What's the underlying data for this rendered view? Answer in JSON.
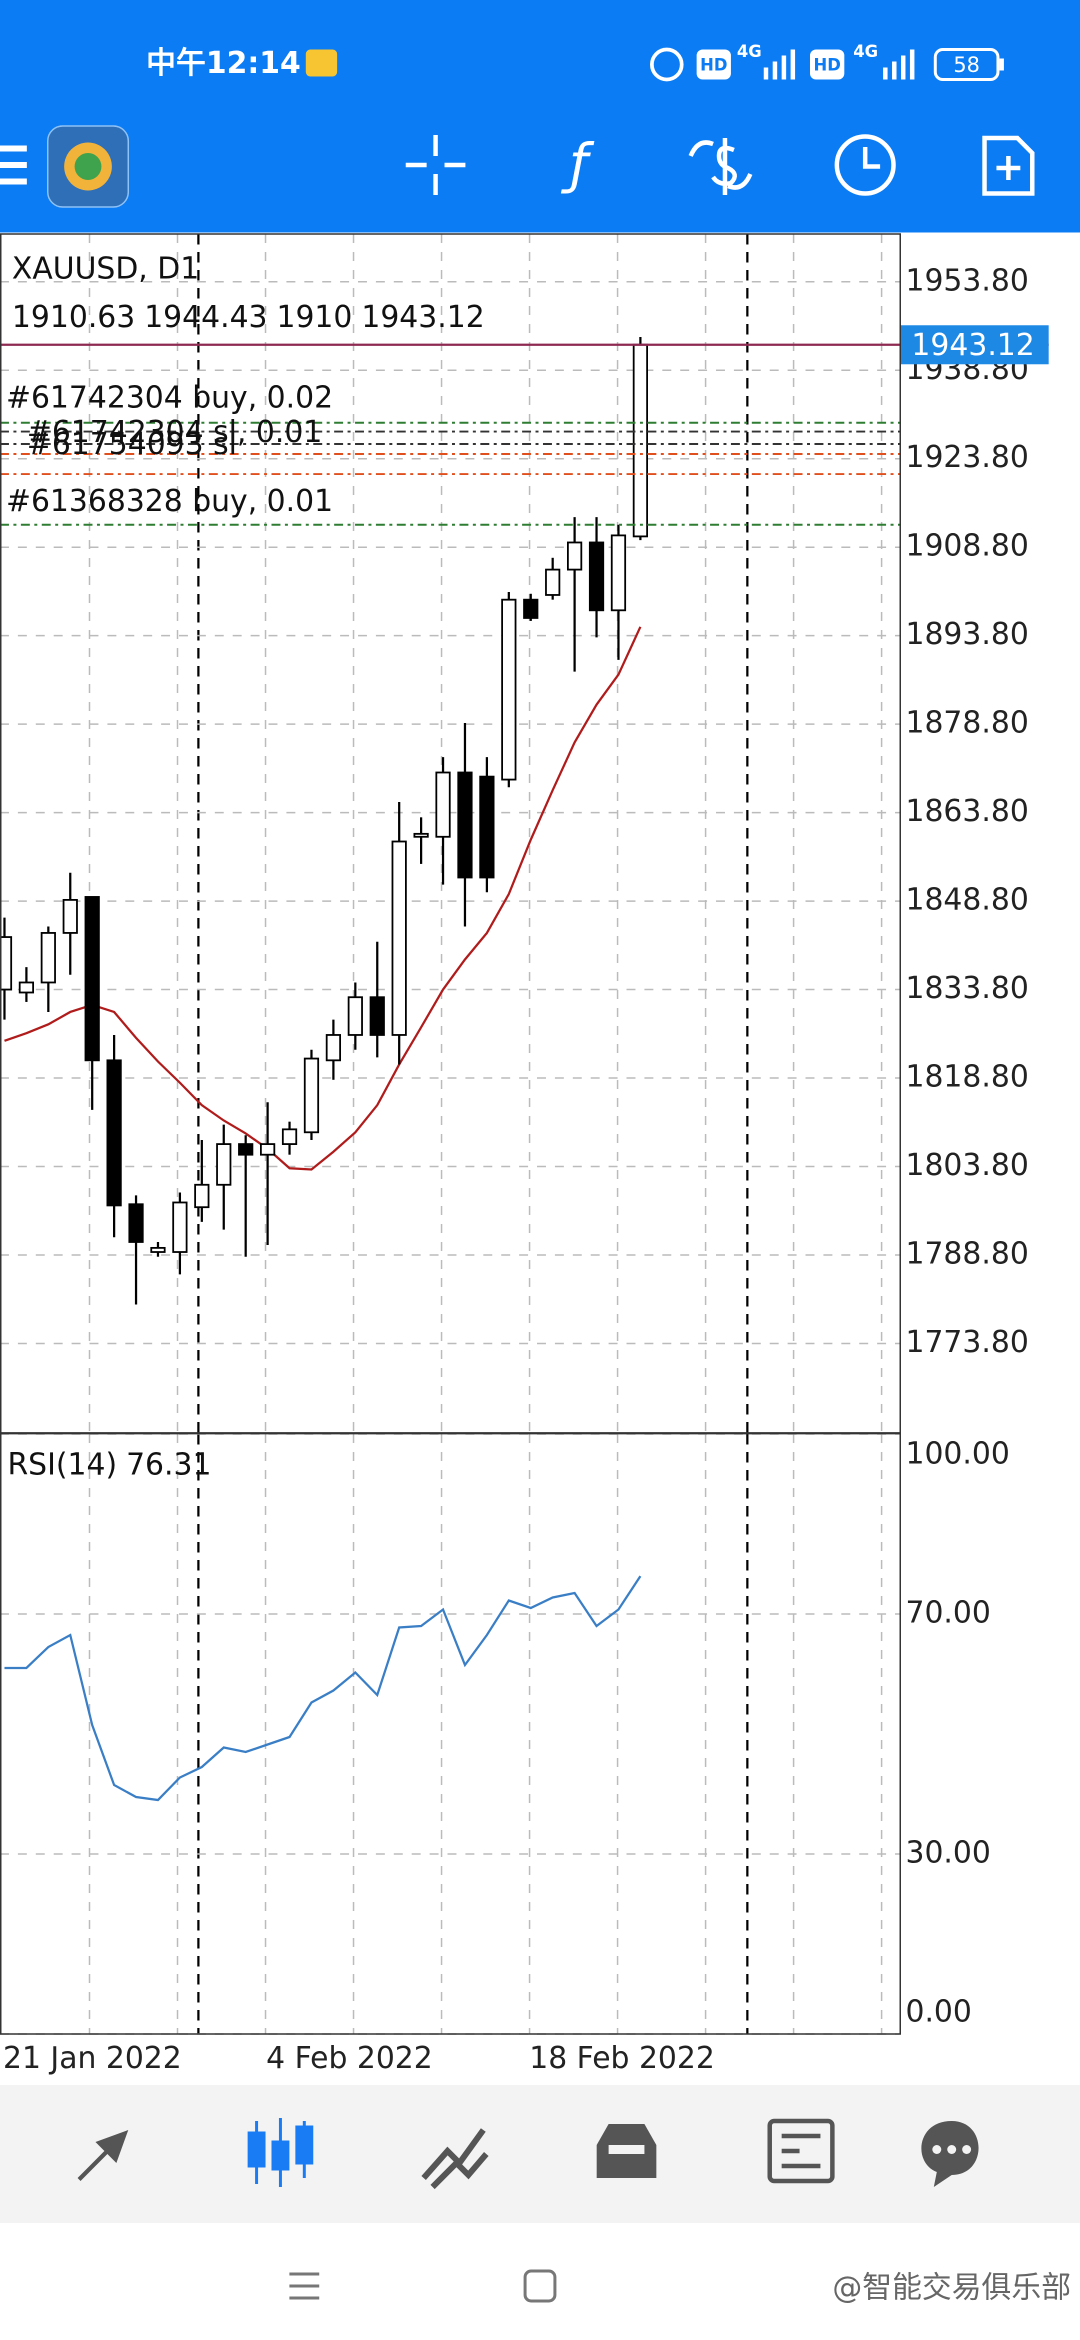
{
  "status_bar": {
    "time": "中午12:14",
    "hd": [
      "HD",
      "HD"
    ],
    "network": [
      "4G",
      "4G"
    ],
    "battery": "58"
  },
  "chart_data": [
    {
      "type": "candlestick",
      "title": "XAUUSD, D1",
      "categories": [
        "21 Jan 2022",
        null,
        null,
        null,
        null,
        null,
        null,
        null,
        null,
        null,
        null,
        null,
        "4 Feb 2022",
        null,
        null,
        null,
        null,
        null,
        null,
        null,
        null,
        null,
        null,
        null,
        "18 Feb 2022",
        null,
        null,
        null,
        null,
        null
      ],
      "open": [
        1833.8,
        1833.3,
        1835.0,
        1843.4,
        1849.5,
        1821.8,
        1797.4,
        1789.3,
        1789.3,
        1796.9,
        1800.7,
        1807.6,
        1805.8,
        1807.6,
        1809.6,
        1821.8,
        1826.1,
        1832.5,
        1826.1,
        1859.7,
        1859.7,
        1870.6,
        1869.9,
        1869.4,
        1899.9,
        1900.7,
        1905.0,
        1909.6,
        1898.1,
        1910.63
      ],
      "high": [
        1846.0,
        1837.6,
        1844.5,
        1853.6,
        1849.5,
        1826.1,
        1798.9,
        1791.0,
        1799.4,
        1808.3,
        1810.9,
        1809.1,
        1814.7,
        1811.4,
        1823.6,
        1828.7,
        1835.0,
        1841.9,
        1865.6,
        1863.0,
        1873.2,
        1879.0,
        1873.2,
        1901.2,
        1900.9,
        1907.0,
        1913.9,
        1913.9,
        1912.6,
        1944.43
      ],
      "low": [
        1828.7,
        1831.7,
        1830.0,
        1836.3,
        1813.4,
        1791.8,
        1780.4,
        1788.5,
        1785.5,
        1794.4,
        1793.1,
        1788.5,
        1790.5,
        1805.8,
        1808.3,
        1818.5,
        1823.6,
        1822.3,
        1821.1,
        1855.1,
        1851.6,
        1844.5,
        1850.3,
        1868.1,
        1896.3,
        1899.9,
        1887.7,
        1893.5,
        1889.7,
        1910.0
      ],
      "close": [
        1842.7,
        1835.0,
        1843.4,
        1849.0,
        1821.8,
        1797.2,
        1791.0,
        1790.0,
        1797.7,
        1800.7,
        1807.6,
        1805.8,
        1807.6,
        1810.1,
        1822.1,
        1826.1,
        1832.5,
        1826.1,
        1858.9,
        1860.2,
        1870.6,
        1852.8,
        1852.8,
        1899.9,
        1896.8,
        1905.0,
        1909.6,
        1898.1,
        1910.8,
        1943.12
      ],
      "ma": {
        "color": "#b01c1c",
        "values": [
          1825.1,
          1826.4,
          1827.9,
          1830.0,
          1831.2,
          1830.0,
          1825.6,
          1821.6,
          1818.0,
          1814.2,
          1811.6,
          1809.4,
          1806.8,
          1803.5,
          1803.3,
          1806.3,
          1809.6,
          1814.2,
          1821.1,
          1827.4,
          1833.8,
          1838.9,
          1843.4,
          1850.0,
          1859.2,
          1867.6,
          1875.7,
          1882.1,
          1887.2,
          1895.3
        ]
      },
      "bull_color": "#ffffff",
      "bear_color": "#000000",
      "last_price_color": "#1e88e5",
      "last_line_color": "#8e2a52",
      "ylim": [
        1758.7,
        1961.9
      ],
      "yticks": [
        {
          "value": 1953.8,
          "label": "1953.80"
        },
        {
          "value": 1938.8,
          "label": "1938.80"
        },
        {
          "value": 1923.8,
          "label": "1923.80"
        },
        {
          "value": 1908.8,
          "label": "1908.80"
        },
        {
          "value": 1893.8,
          "label": "1893.80"
        },
        {
          "value": 1878.8,
          "label": "1878.80"
        },
        {
          "value": 1863.8,
          "label": "1863.80"
        },
        {
          "value": 1848.8,
          "label": "1848.80"
        },
        {
          "value": 1833.8,
          "label": "1833.80"
        },
        {
          "value": 1818.8,
          "label": "1818.80"
        },
        {
          "value": 1803.8,
          "label": "1803.80"
        },
        {
          "value": 1788.8,
          "label": "1788.80"
        },
        {
          "value": 1773.8,
          "label": "1773.80"
        }
      ],
      "grid": true,
      "order_lines": [
        {
          "price": 1929.9,
          "color": "#2e7d32"
        },
        {
          "price": 1928.4,
          "color": "#333333"
        },
        {
          "price": 1926.3,
          "color": "#333333"
        },
        {
          "price": 1924.6,
          "color": "#e0501e"
        },
        {
          "price": 1921.2,
          "color": "#e0501e"
        },
        {
          "price": 1912.6,
          "color": "#2e7d32"
        }
      ],
      "order_labels": [
        "#61754093 sl",
        "#61742304 buy, 0.02",
        "#61742304 sl, 0.01",
        "#61368328 buy, 0.01"
      ]
    },
    {
      "type": "line",
      "title": "RSI(14)",
      "series": [
        {
          "color": "#3a7ec6",
          "values": [
            61.0,
            61.0,
            64.5,
            66.5,
            51.5,
            41.5,
            39.5,
            39.0,
            42.75,
            44.5,
            47.75,
            47.0,
            48.25,
            49.5,
            55.25,
            57.25,
            60.25,
            56.5,
            67.75,
            68.0,
            70.75,
            61.5,
            66.5,
            72.25,
            71.0,
            72.75,
            73.5,
            68.0,
            70.75,
            76.31
          ]
        }
      ],
      "ylim": [
        0,
        100
      ],
      "yticks": [
        {
          "value": 100,
          "label": "100.00"
        },
        {
          "value": 70,
          "label": "70.00"
        },
        {
          "value": 30,
          "label": "30.00"
        },
        {
          "value": 0,
          "label": "0.00"
        }
      ],
      "grid": true
    }
  ],
  "watermark": "@智能交易俱乐部"
}
